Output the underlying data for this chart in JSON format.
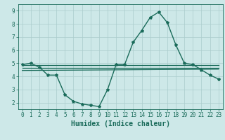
{
  "title": "",
  "xlabel": "Humidex (Indice chaleur)",
  "ylabel": "",
  "bg_color": "#cde8e8",
  "grid_color": "#aacccc",
  "line_color": "#1a6b5a",
  "xlim": [
    -0.5,
    23.5
  ],
  "ylim": [
    1.5,
    9.5
  ],
  "yticks": [
    2,
    3,
    4,
    5,
    6,
    7,
    8,
    9
  ],
  "xticks": [
    0,
    1,
    2,
    3,
    4,
    5,
    6,
    7,
    8,
    9,
    10,
    11,
    12,
    13,
    14,
    15,
    16,
    17,
    18,
    19,
    20,
    21,
    22,
    23
  ],
  "series": [
    {
      "x": [
        0,
        1,
        2,
        3,
        4,
        5,
        6,
        7,
        8,
        9,
        10,
        11,
        12,
        13,
        14,
        15,
        16,
        17,
        18,
        19,
        20,
        21,
        22,
        23
      ],
      "y": [
        4.9,
        5.0,
        4.7,
        4.1,
        4.1,
        2.6,
        2.1,
        1.9,
        1.8,
        1.7,
        3.0,
        4.9,
        4.9,
        6.6,
        7.5,
        8.5,
        8.9,
        8.1,
        6.4,
        5.0,
        4.9,
        4.5,
        4.1,
        3.8
      ],
      "color": "#1a6b5a",
      "linewidth": 1.0,
      "marker": "*",
      "markersize": 3,
      "zorder": 3
    },
    {
      "x": [
        0,
        23
      ],
      "y": [
        4.85,
        4.85
      ],
      "color": "#1a6b5a",
      "linewidth": 0.9,
      "marker": null,
      "zorder": 2
    },
    {
      "x": [
        0,
        23
      ],
      "y": [
        4.65,
        4.65
      ],
      "color": "#1a6b5a",
      "linewidth": 0.9,
      "marker": null,
      "zorder": 2
    },
    {
      "x": [
        0,
        23
      ],
      "y": [
        4.45,
        4.55
      ],
      "color": "#1a6b5a",
      "linewidth": 0.9,
      "marker": null,
      "zorder": 2
    }
  ],
  "font_color": "#1a6b5a",
  "tick_fontsize": 5.5,
  "label_fontsize": 7.0
}
